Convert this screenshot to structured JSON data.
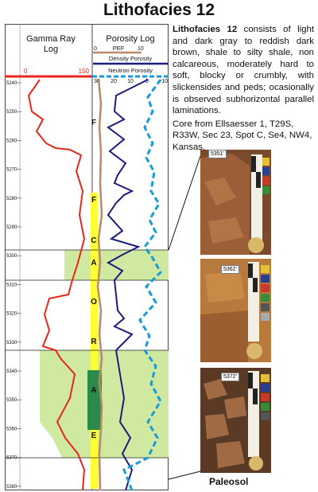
{
  "title": "Lithofacies 12",
  "headers": {
    "gamma_ray": "Gamma Ray Log",
    "porosity": "Porosity Log",
    "pef": "PEF",
    "density": "Density Porosity",
    "neutron": "Neutron Porosity"
  },
  "scales": {
    "gamma_min": "0",
    "gamma_max": "150",
    "pef_min": "0",
    "pef_max": "10",
    "por_ticks": [
      "30",
      "20",
      "10",
      "0",
      "-10"
    ]
  },
  "depth_ticks": [
    "5240",
    "5250",
    "5260",
    "5270",
    "5280",
    "5290",
    "5300",
    "5310",
    "5320",
    "5330",
    "5340",
    "5350",
    "5360",
    "5370",
    "5380"
  ],
  "horizon_letters": [
    "F",
    "F",
    "C",
    "A",
    "O",
    "R",
    "A",
    "E"
  ],
  "description": {
    "bold_lead": "Lithofacies 12",
    "text": " consists of light and dark gray to reddish dark brown, shale to silty shale, non calcareous, moderately hard to soft, blocky or crumbly, with slickensides and peds; ocasionally is observed subhorizontal parallel laminations.",
    "core": "Core from Ellsaesser 1, T29S, R33W, Sec 23, Spot C, Se4, NW4, Kansas."
  },
  "photos": [
    {
      "label": "5351'"
    },
    {
      "label": "5362'"
    },
    {
      "label": "5372'"
    }
  ],
  "photo_caption": "Paleosol",
  "colors": {
    "gamma": "#e8261c",
    "pef": "#b98a66",
    "density": "#1c1c7a",
    "neutron": "#1a9ad8",
    "highlight": "#cfe9a0",
    "yellow_bar": "#ffff33",
    "green_bar": "#2a8a4a"
  }
}
